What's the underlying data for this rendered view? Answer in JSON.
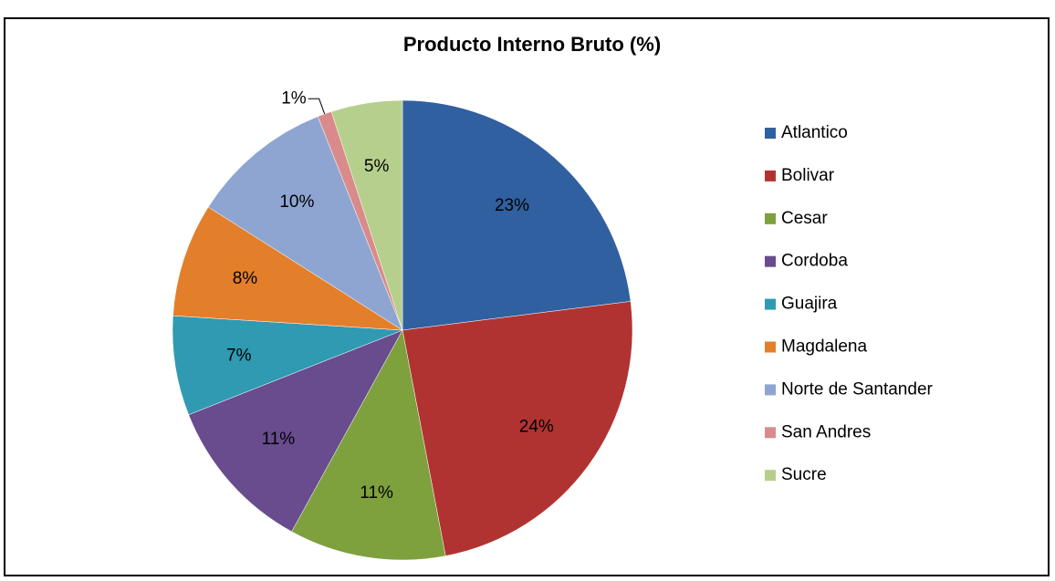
{
  "chart_data": {
    "type": "pie",
    "title": "Producto Interno Bruto (%)",
    "categories": [
      "Atlantico",
      "Bolivar",
      "Cesar",
      "Cordoba",
      "Guajira",
      "Magdalena",
      "Norte de Santander",
      "San Andres",
      "Sucre"
    ],
    "values": [
      23,
      24,
      11,
      11,
      7,
      8,
      10,
      1,
      5
    ],
    "value_labels": [
      "23%",
      "24%",
      "11%",
      "11%",
      "7%",
      "8%",
      "10%",
      "1%",
      "5%"
    ],
    "colors": [
      "#30609f",
      "#b13331",
      "#7ea03d",
      "#684c8e",
      "#2f9ab2",
      "#e37f2a",
      "#8ea5d2",
      "#d98b8b",
      "#b6cf8d"
    ],
    "legend": "right"
  }
}
